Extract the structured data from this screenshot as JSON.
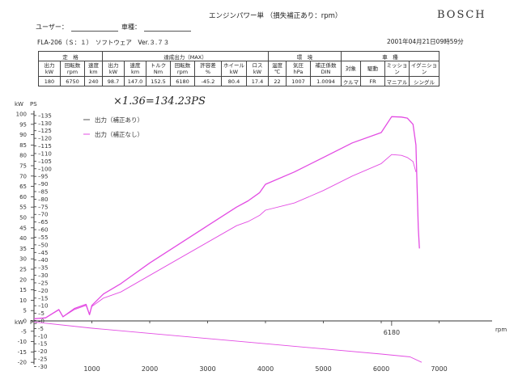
{
  "header": {
    "brand": "BOSCH",
    "title": "エンジンパワー単 （損失補正あり：rpm）",
    "user_label": "ユーザー：",
    "vehicle_label": "車種：",
    "device": "FLA-206（Ｓ：１）　ソフトウェア　Ver.３.７３",
    "timestamp": "2001年04月21日09時59分"
  },
  "spec_table": {
    "groups": [
      "定　格",
      "達成出力（MAX）",
      "環　境",
      "車　種"
    ],
    "headers": [
      {
        "label": "出力",
        "unit": "kW"
      },
      {
        "label": "回転数",
        "unit": "rpm"
      },
      {
        "label": "速度",
        "unit": "km"
      },
      {
        "label": "出力",
        "unit": "kW"
      },
      {
        "label": "速度",
        "unit": "km"
      },
      {
        "label": "トルク",
        "unit": "Nm"
      },
      {
        "label": "回転数",
        "unit": "rpm"
      },
      {
        "label": "許容差",
        "unit": "%"
      },
      {
        "label": "ホイール",
        "unit": "kW"
      },
      {
        "label": "ロス",
        "unit": "kW"
      },
      {
        "label": "温度",
        "unit": "℃"
      },
      {
        "label": "気圧",
        "unit": "hPa"
      },
      {
        "label": "補正係数",
        "unit": "DIN"
      },
      {
        "label": "対象",
        "unit": ""
      },
      {
        "label": "駆動",
        "unit": ""
      },
      {
        "label": "ミッション",
        "unit": ""
      },
      {
        "label": "イグニション",
        "unit": ""
      }
    ],
    "values": [
      "180",
      "6750",
      "240",
      "98.7",
      "147.0",
      "152.5",
      "6180",
      "-45.2",
      "80.4",
      "17.4",
      "22",
      "1007",
      "1.0094",
      "クルマ",
      "FR",
      "マニアル",
      "シングル"
    ]
  },
  "annotation": "×1.36=134.23PS",
  "chart_data": {
    "type": "line",
    "xlabel": "rpm",
    "x_ticks": [
      1000,
      2000,
      3000,
      4000,
      5000,
      6000,
      7000
    ],
    "xlim": [
      0,
      7800
    ],
    "ylabel_kw": "kW",
    "ylabel_ps": "PS",
    "kw_ticks": [
      100,
      95,
      90,
      85,
      80,
      75,
      70,
      65,
      60,
      55,
      50,
      45,
      40,
      35,
      30,
      25,
      20,
      15,
      10,
      5,
      0,
      -5,
      -10,
      -15,
      -20
    ],
    "ps_ticks": [
      135,
      130,
      125,
      120,
      115,
      110,
      105,
      100,
      95,
      90,
      85,
      80,
      75,
      70,
      65,
      60,
      55,
      50,
      45,
      40,
      35,
      30,
      25,
      20,
      15,
      10,
      5,
      0,
      -5,
      -10,
      -15,
      -20,
      -25,
      -30
    ],
    "ylim_kw": [
      -20,
      100
    ],
    "peak_rpm_label": "6180",
    "color": "#e34ce3",
    "series": [
      {
        "name": "出力（補正あり）",
        "x": [
          0,
          200,
          430,
          500,
          700,
          900,
          960,
          1000,
          1200,
          1500,
          2000,
          2500,
          3000,
          3500,
          3700,
          3900,
          4000,
          4500,
          5000,
          5500,
          6000,
          6180,
          6350,
          6450,
          6550,
          6600,
          6620,
          6640,
          6660
        ],
        "y": [
          1,
          1.5,
          5.5,
          2,
          6,
          8,
          3,
          7.5,
          13,
          18,
          28,
          37,
          46,
          55,
          58,
          62,
          66,
          72,
          79,
          86,
          91,
          98.7,
          98.5,
          98,
          95,
          85,
          65,
          45,
          35
        ]
      },
      {
        "name": "出力（補正なし）",
        "x": [
          0,
          200,
          430,
          500,
          700,
          900,
          960,
          1000,
          1200,
          1500,
          2000,
          2500,
          3000,
          3500,
          3700,
          3900,
          4000,
          4500,
          5000,
          5500,
          6000,
          6180,
          6350,
          6450,
          6550,
          6600
        ],
        "y": [
          1,
          1.5,
          5.3,
          2,
          5.5,
          7.5,
          3,
          7,
          11,
          14,
          22,
          30,
          38,
          46,
          48,
          51,
          53.5,
          57,
          63,
          70,
          76,
          80.4,
          80,
          79,
          77,
          72
        ]
      },
      {
        "name": "ロス",
        "x": [
          0,
          1000,
          2000,
          3000,
          4000,
          5000,
          6000,
          6500,
          6700
        ],
        "y": [
          -0.5,
          -3.5,
          -6,
          -8.5,
          -11,
          -13.5,
          -16,
          -17.4,
          -20
        ]
      }
    ]
  }
}
